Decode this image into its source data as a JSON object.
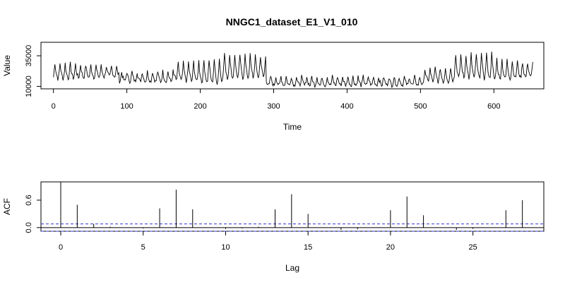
{
  "chart_data": [
    {
      "type": "line",
      "title": "NNGC1_dataset_E1_V1_010",
      "xlabel": "Time",
      "ylabel": "Value",
      "xlim": [
        -17,
        668
      ],
      "ylim": [
        8000,
        46000
      ],
      "x_ticks": [
        "0",
        "100",
        "200",
        "300",
        "400",
        "500",
        "600"
      ],
      "x_tick_values": [
        0,
        100,
        200,
        300,
        400,
        500,
        600
      ],
      "y_ticks": [
        "10000",
        "35000"
      ],
      "y_tick_values": [
        10000,
        35000
      ],
      "period": 7,
      "segments": [
        {
          "x0": 0,
          "x1": 90,
          "base": 21000,
          "amp": 14000,
          "ampEnd": 8000
        },
        {
          "x0": 90,
          "x1": 165,
          "base": 17000,
          "amp": 8000,
          "ampEnd": 9000
        },
        {
          "x0": 165,
          "x1": 230,
          "base": 20000,
          "amp": 14000,
          "ampEnd": 22000
        },
        {
          "x0": 230,
          "x1": 290,
          "base": 24000,
          "amp": 22000,
          "ampEnd": 18000
        },
        {
          "x0": 290,
          "x1": 505,
          "base": 13500,
          "amp": 8000,
          "ampEnd": 7000
        },
        {
          "x0": 505,
          "x1": 545,
          "base": 18000,
          "amp": 10000,
          "ampEnd": 14000
        },
        {
          "x0": 545,
          "x1": 600,
          "base": 24000,
          "amp": 20000,
          "ampEnd": 22000
        },
        {
          "x0": 600,
          "x1": 654,
          "base": 22000,
          "amp": 18000,
          "ampEnd": 12000
        }
      ],
      "line_color": "#000000"
    },
    {
      "type": "bar",
      "xlabel": "Lag",
      "ylabel": "ACF",
      "xlim": [
        -1.2,
        29.3
      ],
      "ylim": [
        -0.08,
        1.0
      ],
      "x_ticks": [
        "0",
        "5",
        "10",
        "15",
        "20",
        "25"
      ],
      "x_tick_values": [
        0,
        5,
        10,
        15,
        20,
        25
      ],
      "y_ticks": [
        "0.0",
        "0.6"
      ],
      "y_tick_values": [
        0,
        0.6
      ],
      "lags": [
        0,
        1,
        2,
        3,
        4,
        5,
        6,
        7,
        8,
        9,
        10,
        11,
        12,
        13,
        14,
        15,
        16,
        17,
        18,
        19,
        20,
        21,
        22,
        23,
        24,
        25,
        26,
        27,
        28
      ],
      "acf": [
        1.0,
        0.5,
        0.08,
        0.02,
        0.0,
        -0.02,
        0.42,
        0.83,
        0.4,
        0.0,
        -0.03,
        -0.02,
        0.02,
        0.4,
        0.73,
        0.3,
        0.0,
        -0.05,
        -0.04,
        0.0,
        0.38,
        0.68,
        0.27,
        0.0,
        -0.05,
        -0.03,
        0.0,
        0.38,
        0.6
      ],
      "ci_upper": 0.08,
      "ci_lower": -0.08,
      "ci_color": "#3333cc",
      "zero_line_color": "#000000"
    }
  ]
}
